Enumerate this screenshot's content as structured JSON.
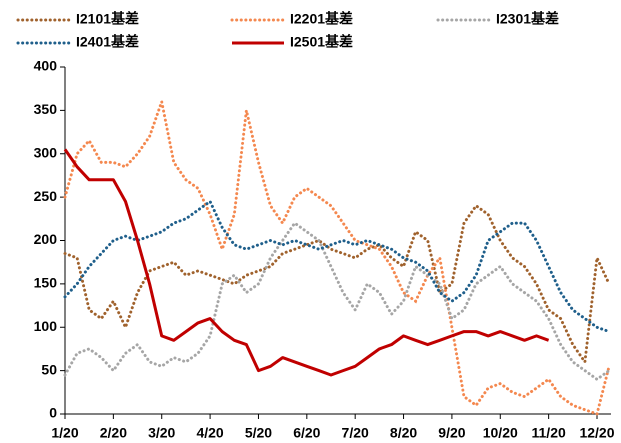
{
  "chart_data": {
    "type": "line",
    "categories": [
      "1/20",
      null,
      null,
      null,
      "2/20",
      null,
      null,
      null,
      "3/20",
      null,
      null,
      null,
      "4/20",
      null,
      null,
      null,
      "5/20",
      null,
      null,
      null,
      "6/20",
      null,
      null,
      null,
      "7/20",
      null,
      null,
      null,
      "8/20",
      null,
      null,
      null,
      "9/20",
      null,
      null,
      null,
      "10/20",
      null,
      null,
      null,
      "11/20",
      null,
      null,
      null,
      "12/20",
      null
    ],
    "series": [
      {
        "name": "I2101基差",
        "color": "#a0622d",
        "style": "dotted",
        "values": [
          185,
          180,
          120,
          110,
          130,
          100,
          140,
          165,
          170,
          175,
          160,
          165,
          160,
          155,
          150,
          160,
          165,
          170,
          185,
          190,
          195,
          200,
          190,
          185,
          180,
          190,
          195,
          180,
          170,
          210,
          200,
          140,
          150,
          220,
          240,
          230,
          200,
          180,
          170,
          150,
          120,
          110,
          80,
          60,
          180,
          150
        ]
      },
      {
        "name": "I2201基差",
        "color": "#f4884f",
        "style": "dotted",
        "values": [
          250,
          300,
          315,
          290,
          290,
          285,
          300,
          320,
          360,
          290,
          270,
          260,
          230,
          190,
          230,
          350,
          290,
          240,
          220,
          250,
          260,
          250,
          240,
          220,
          200,
          195,
          190,
          170,
          140,
          130,
          160,
          180,
          100,
          20,
          10,
          30,
          35,
          25,
          20,
          30,
          40,
          20,
          10,
          5,
          0,
          55
        ]
      },
      {
        "name": "I2301基差",
        "color": "#a6a6a6",
        "style": "dotted",
        "values": [
          45,
          70,
          75,
          65,
          50,
          70,
          80,
          60,
          55,
          65,
          60,
          70,
          90,
          150,
          160,
          140,
          150,
          180,
          200,
          220,
          210,
          200,
          170,
          140,
          120,
          150,
          140,
          115,
          130,
          170,
          160,
          150,
          110,
          120,
          150,
          160,
          170,
          150,
          140,
          130,
          110,
          80,
          60,
          50,
          40,
          50
        ]
      },
      {
        "name": "I2401基差",
        "color": "#1f5f8b",
        "style": "dotted",
        "values": [
          135,
          150,
          170,
          185,
          200,
          205,
          200,
          205,
          210,
          220,
          225,
          235,
          245,
          215,
          195,
          190,
          195,
          200,
          195,
          200,
          195,
          190,
          195,
          200,
          195,
          200,
          195,
          190,
          180,
          175,
          165,
          140,
          130,
          140,
          160,
          200,
          210,
          220,
          220,
          200,
          170,
          140,
          120,
          110,
          100,
          95
        ]
      },
      {
        "name": "I2501基差",
        "color": "#c00000",
        "style": "solid",
        "values": [
          305,
          285,
          270,
          270,
          270,
          245,
          200,
          150,
          90,
          85,
          95,
          105,
          110,
          95,
          85,
          80,
          50,
          55,
          65,
          60,
          55,
          50,
          45,
          50,
          55,
          65,
          75,
          80,
          90,
          85,
          80,
          85,
          90,
          95,
          95,
          90,
          95,
          90,
          85,
          90,
          85,
          null,
          null,
          null,
          null,
          null
        ]
      }
    ],
    "ylim": [
      0,
      400
    ],
    "yticks": [
      0,
      50,
      100,
      150,
      200,
      250,
      300,
      350,
      400
    ],
    "grid": false
  }
}
